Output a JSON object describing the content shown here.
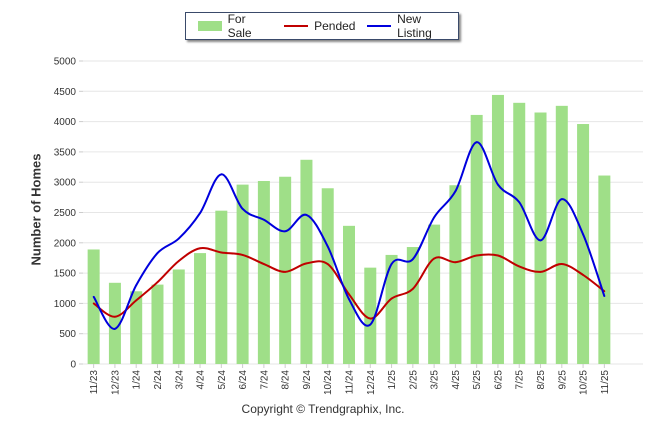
{
  "chart_data": {
    "type": "bar",
    "title": "",
    "xlabel": "",
    "ylabel": "Number of Homes",
    "ylim": [
      0,
      5000
    ],
    "yticks": [
      0,
      500,
      1000,
      1500,
      2000,
      2500,
      3000,
      3500,
      4000,
      4500,
      5000
    ],
    "grid": true,
    "legend_position": "top-center",
    "categories": [
      "11/23",
      "12/23",
      "1/24",
      "2/24",
      "3/24",
      "4/24",
      "5/24",
      "6/24",
      "7/24",
      "8/24",
      "9/24",
      "10/24",
      "11/24",
      "12/24",
      "1/25",
      "2/25",
      "3/25",
      "4/25",
      "5/25",
      "6/25",
      "7/25",
      "8/25",
      "9/25",
      "10/25",
      "11/25"
    ],
    "series": [
      {
        "name": "For Sale",
        "type": "bar",
        "color": "#9fdf88",
        "values": [
          1890,
          1340,
          1200,
          1310,
          1560,
          1830,
          2530,
          2960,
          3020,
          3090,
          3370,
          2900,
          2280,
          1590,
          1800,
          1930,
          2300,
          2950,
          4110,
          4440,
          4310,
          4150,
          4260,
          3960,
          3110
        ]
      },
      {
        "name": "Pended",
        "type": "line",
        "color": "#c00000",
        "values": [
          1000,
          780,
          1050,
          1350,
          1700,
          1910,
          1840,
          1800,
          1650,
          1520,
          1660,
          1650,
          1150,
          750,
          1080,
          1240,
          1740,
          1680,
          1790,
          1790,
          1610,
          1520,
          1650,
          1470,
          1200
        ]
      },
      {
        "name": "New Listing",
        "type": "line",
        "color": "#0000dd",
        "values": [
          1110,
          580,
          1300,
          1830,
          2070,
          2490,
          3130,
          2560,
          2380,
          2190,
          2460,
          1940,
          1070,
          650,
          1650,
          1730,
          2420,
          2850,
          3660,
          2960,
          2670,
          2040,
          2720,
          2140,
          1120
        ]
      }
    ]
  },
  "copyright": "Copyright © Trendgraphix, Inc."
}
